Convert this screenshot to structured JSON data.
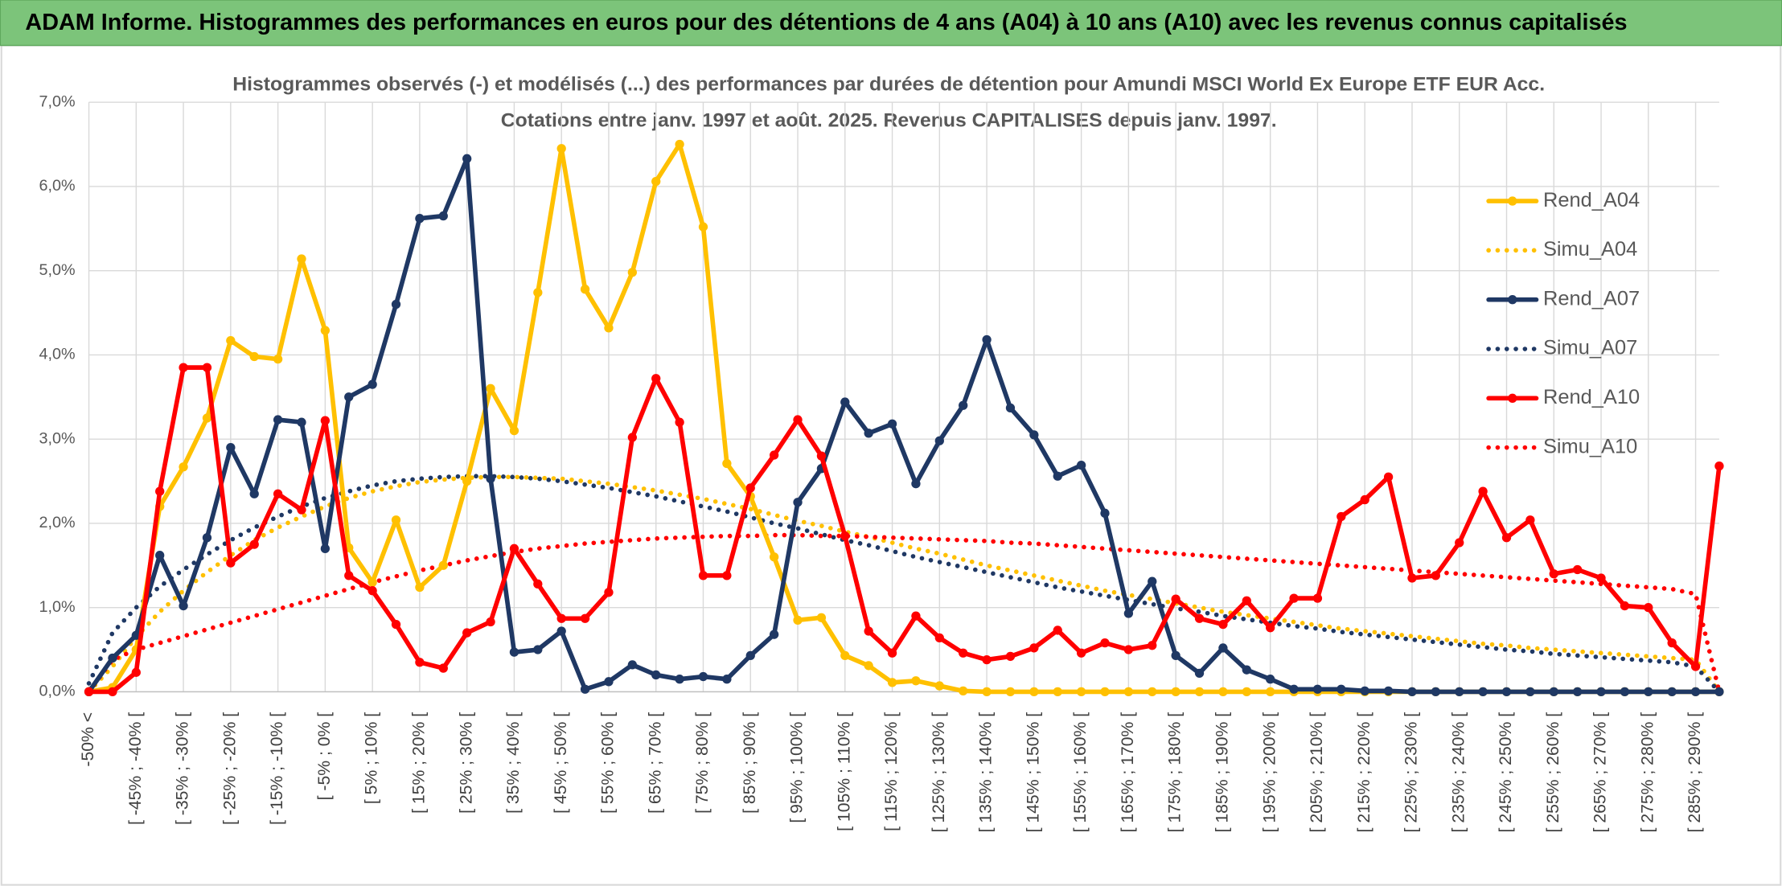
{
  "chart_data": {
    "type": "line",
    "title": "ADAM Informe. Histogrammes des performances en euros pour des détentions de 4 ans (A04) à 10 ans (A10) avec les revenus connus capitalisés",
    "subtitle": [
      "Histogrammes observés (-) et modélisés (...) des performances par durées de détention pour Amundi MSCI World Ex Europe ETF EUR Acc.",
      "Cotations entre janv. 1997 et août. 2025. Revenus CAPITALISES depuis janv. 1997."
    ],
    "categories": [
      "-50% <",
      null,
      "[ -45% ; -40% [",
      null,
      "[ -35% ; -30% [",
      null,
      "[ -25% ; -20% [",
      null,
      "[ -15% ; -10% [",
      null,
      "[ -5% ; 0% [",
      null,
      "[ 5% ; 10% [",
      null,
      "[ 15% ; 20% [",
      null,
      "[ 25% ; 30% [",
      null,
      "[ 35% ; 40% [",
      null,
      "[ 45% ; 50% [",
      null,
      "[ 55% ; 60% [",
      null,
      "[ 65% ; 70% [",
      null,
      "[ 75% ; 80% [",
      null,
      "[ 85% ; 90% [",
      null,
      "[ 95% ; 100% [",
      null,
      "[ 105% ; 110% [",
      null,
      "[ 115% ; 120% [",
      null,
      "[ 125% ; 130% [",
      null,
      "[ 135% ; 140% [",
      null,
      "[ 145% ; 150% [",
      null,
      "[ 155% ; 160% [",
      null,
      "[ 165% ; 170% [",
      null,
      "[ 175% ; 180% [",
      null,
      "[ 185% ; 190% [",
      null,
      "[ 195% ; 200% [",
      null,
      "[ 205% ; 210% [",
      null,
      "[ 215% ; 220% [",
      null,
      "[ 225% ; 230% [",
      null,
      "[ 235% ; 240% [",
      null,
      "[ 245% ; 250% [",
      null,
      "[ 255% ; 260% [",
      null,
      "[ 265% ; 270% [",
      null,
      "[ 275% ; 280% [",
      null,
      "[ 285% ; 290% [",
      null
    ],
    "series": [
      {
        "name": "Rend_A04",
        "color": "#ffc000",
        "line_style": "solid",
        "marker": true,
        "values": [
          0,
          0.05,
          0.5,
          2.2,
          2.67,
          3.25,
          4.17,
          3.98,
          3.95,
          5.14,
          4.29,
          1.71,
          1.3,
          2.04,
          1.24,
          1.5,
          2.5,
          3.6,
          3.1,
          4.74,
          6.45,
          4.78,
          4.32,
          4.98,
          6.06,
          6.5,
          5.52,
          2.71,
          2.32,
          1.6,
          0.85,
          0.88,
          0.43,
          0.31,
          0.11,
          0.13,
          0.07,
          0.01,
          0,
          0,
          0,
          0,
          0,
          0,
          0,
          0,
          0,
          0,
          0,
          0,
          0,
          0,
          0,
          0,
          0,
          0,
          0,
          0,
          0,
          0,
          0,
          0,
          0,
          0,
          0,
          0,
          0,
          0,
          0,
          0
        ]
      },
      {
        "name": "Simu_A04",
        "color": "#ffc000",
        "line_style": "dotted",
        "marker": false,
        "values": [
          0,
          0.3,
          0.65,
          0.95,
          1.2,
          1.42,
          1.62,
          1.8,
          1.95,
          2.08,
          2.2,
          2.3,
          2.38,
          2.44,
          2.49,
          2.52,
          2.54,
          2.55,
          2.55,
          2.54,
          2.53,
          2.5,
          2.47,
          2.43,
          2.39,
          2.34,
          2.29,
          2.23,
          2.17,
          2.1,
          2.03,
          1.97,
          1.9,
          1.84,
          1.77,
          1.7,
          1.64,
          1.57,
          1.5,
          1.44,
          1.38,
          1.32,
          1.26,
          1.2,
          1.15,
          1.1,
          1.05,
          1.0,
          0.95,
          0.91,
          0.87,
          0.83,
          0.79,
          0.75,
          0.72,
          0.69,
          0.66,
          0.63,
          0.6,
          0.57,
          0.55,
          0.52,
          0.5,
          0.48,
          0.46,
          0.44,
          0.42,
          0.4,
          0.38,
          0
        ]
      },
      {
        "name": "Rend_A07",
        "color": "#1f3864",
        "line_style": "solid",
        "marker": true,
        "values": [
          0,
          0.4,
          0.67,
          1.62,
          1.02,
          1.83,
          2.9,
          2.35,
          3.23,
          3.2,
          1.7,
          3.5,
          3.65,
          4.6,
          5.62,
          5.65,
          6.33,
          2.53,
          0.47,
          0.5,
          0.72,
          0.03,
          0.12,
          0.32,
          0.2,
          0.15,
          0.18,
          0.15,
          0.43,
          0.68,
          2.25,
          2.65,
          3.44,
          3.07,
          3.18,
          2.47,
          2.98,
          3.4,
          4.18,
          3.37,
          3.05,
          2.56,
          2.69,
          2.12,
          0.93,
          1.31,
          0.43,
          0.22,
          0.52,
          0.26,
          0.15,
          0.03,
          0.03,
          0.03,
          0.01,
          0.01,
          0,
          0,
          0,
          0,
          0,
          0,
          0,
          0,
          0,
          0,
          0,
          0,
          0,
          0
        ]
      },
      {
        "name": "Simu_A07",
        "color": "#1f3864",
        "line_style": "dotted",
        "marker": false,
        "values": [
          0.1,
          0.7,
          1.0,
          1.25,
          1.45,
          1.63,
          1.8,
          1.95,
          2.08,
          2.2,
          2.3,
          2.38,
          2.45,
          2.5,
          2.53,
          2.55,
          2.56,
          2.56,
          2.55,
          2.53,
          2.5,
          2.46,
          2.42,
          2.37,
          2.32,
          2.26,
          2.2,
          2.14,
          2.07,
          2.0,
          1.94,
          1.87,
          1.8,
          1.74,
          1.67,
          1.6,
          1.54,
          1.48,
          1.42,
          1.36,
          1.3,
          1.24,
          1.19,
          1.14,
          1.09,
          1.04,
          0.99,
          0.95,
          0.9,
          0.86,
          0.82,
          0.78,
          0.75,
          0.71,
          0.68,
          0.65,
          0.62,
          0.59,
          0.56,
          0.53,
          0.5,
          0.48,
          0.45,
          0.43,
          0.41,
          0.39,
          0.37,
          0.35,
          0.3,
          0
        ]
      },
      {
        "name": "Rend_A10",
        "color": "#ff0000",
        "line_style": "solid",
        "marker": true,
        "values": [
          0,
          0,
          0.23,
          2.38,
          3.85,
          3.85,
          1.53,
          1.75,
          2.35,
          2.16,
          3.22,
          1.38,
          1.2,
          0.8,
          0.35,
          0.28,
          0.7,
          0.83,
          1.7,
          1.28,
          0.87,
          0.87,
          1.18,
          3.02,
          3.72,
          3.2,
          1.38,
          1.38,
          2.42,
          2.81,
          3.23,
          2.8,
          1.85,
          0.72,
          0.46,
          0.9,
          0.64,
          0.46,
          0.38,
          0.42,
          0.52,
          0.73,
          0.46,
          0.58,
          0.5,
          0.55,
          1.1,
          0.87,
          0.8,
          1.08,
          0.76,
          1.11,
          1.11,
          2.08,
          2.28,
          2.55,
          1.35,
          1.38,
          1.77,
          2.38,
          1.83,
          2.04,
          1.4,
          1.45,
          1.35,
          1.02,
          1.0,
          0.58,
          0.3,
          2.68
        ]
      },
      {
        "name": "Simu_A10",
        "color": "#ff0000",
        "line_style": "dotted",
        "marker": false,
        "values": [
          0,
          0.38,
          0.5,
          0.58,
          0.66,
          0.74,
          0.82,
          0.9,
          0.98,
          1.06,
          1.14,
          1.22,
          1.3,
          1.37,
          1.44,
          1.5,
          1.56,
          1.61,
          1.66,
          1.7,
          1.73,
          1.76,
          1.78,
          1.8,
          1.82,
          1.83,
          1.84,
          1.85,
          1.85,
          1.86,
          1.86,
          1.85,
          1.85,
          1.84,
          1.83,
          1.82,
          1.81,
          1.8,
          1.79,
          1.77,
          1.76,
          1.74,
          1.72,
          1.7,
          1.68,
          1.66,
          1.64,
          1.62,
          1.6,
          1.58,
          1.56,
          1.54,
          1.52,
          1.5,
          1.48,
          1.46,
          1.44,
          1.42,
          1.4,
          1.38,
          1.36,
          1.34,
          1.32,
          1.3,
          1.28,
          1.26,
          1.24,
          1.22,
          1.16,
          0
        ]
      }
    ],
    "ylim": [
      0,
      7
    ],
    "yticks": [
      {
        "value": 0,
        "label": "0,0%"
      },
      {
        "value": 1,
        "label": "1,0%"
      },
      {
        "value": 2,
        "label": "2,0%"
      },
      {
        "value": 3,
        "label": "3,0%"
      },
      {
        "value": 4,
        "label": "4,0%"
      },
      {
        "value": 5,
        "label": "5,0%"
      },
      {
        "value": 6,
        "label": "6,0%"
      },
      {
        "value": 7,
        "label": "7,0%"
      }
    ],
    "grid": true,
    "legend": "right"
  }
}
